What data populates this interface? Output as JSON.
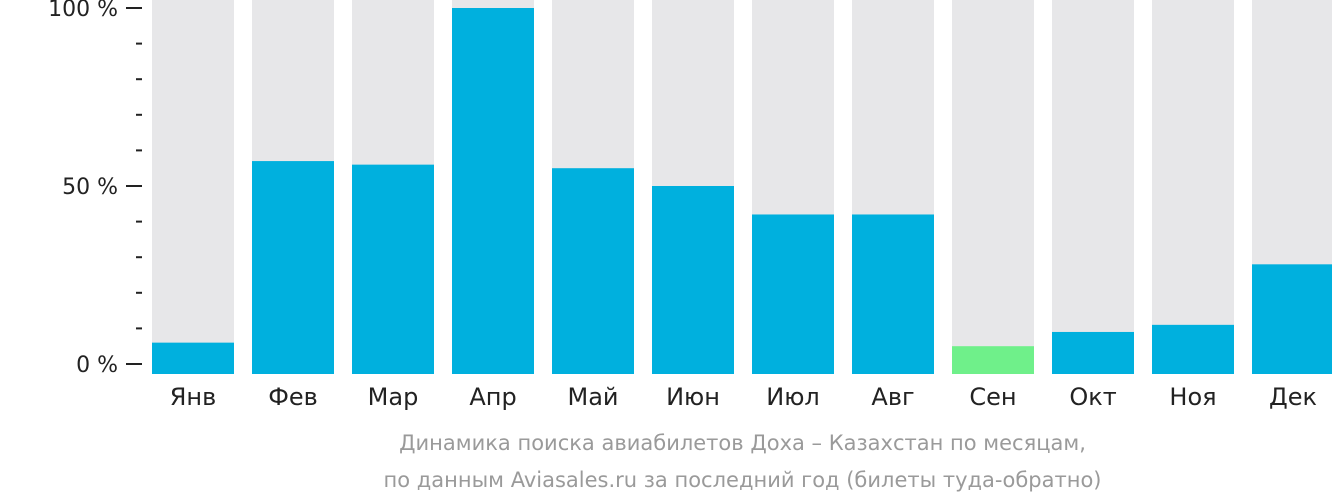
{
  "chart_data": {
    "type": "bar",
    "categories": [
      "Янв",
      "Фев",
      "Мар",
      "Апр",
      "Май",
      "Июн",
      "Июл",
      "Авг",
      "Сен",
      "Окт",
      "Ноя",
      "Дек"
    ],
    "values": [
      6,
      57,
      56,
      100,
      55,
      50,
      42,
      42,
      5,
      9,
      11,
      28
    ],
    "ylim": [
      0,
      100
    ],
    "y_ticks": [
      {
        "value": 0,
        "label": "0 %"
      },
      {
        "value": 50,
        "label": "50 %"
      },
      {
        "value": 100,
        "label": "100 %"
      }
    ],
    "y_minor_step": 10,
    "xlabel": "",
    "ylabel": "",
    "highlight_index": 8,
    "colors": {
      "bar": "#00b0de",
      "highlight": "#6ff08a",
      "track": "#e7e7e9",
      "axis": "#222222"
    }
  },
  "caption": {
    "line1": "Динамика поиска авиабилетов Доха – Казахстан по месяцам,",
    "line2": "по данным Aviasales.ru за последний год (билеты туда-обратно)"
  }
}
